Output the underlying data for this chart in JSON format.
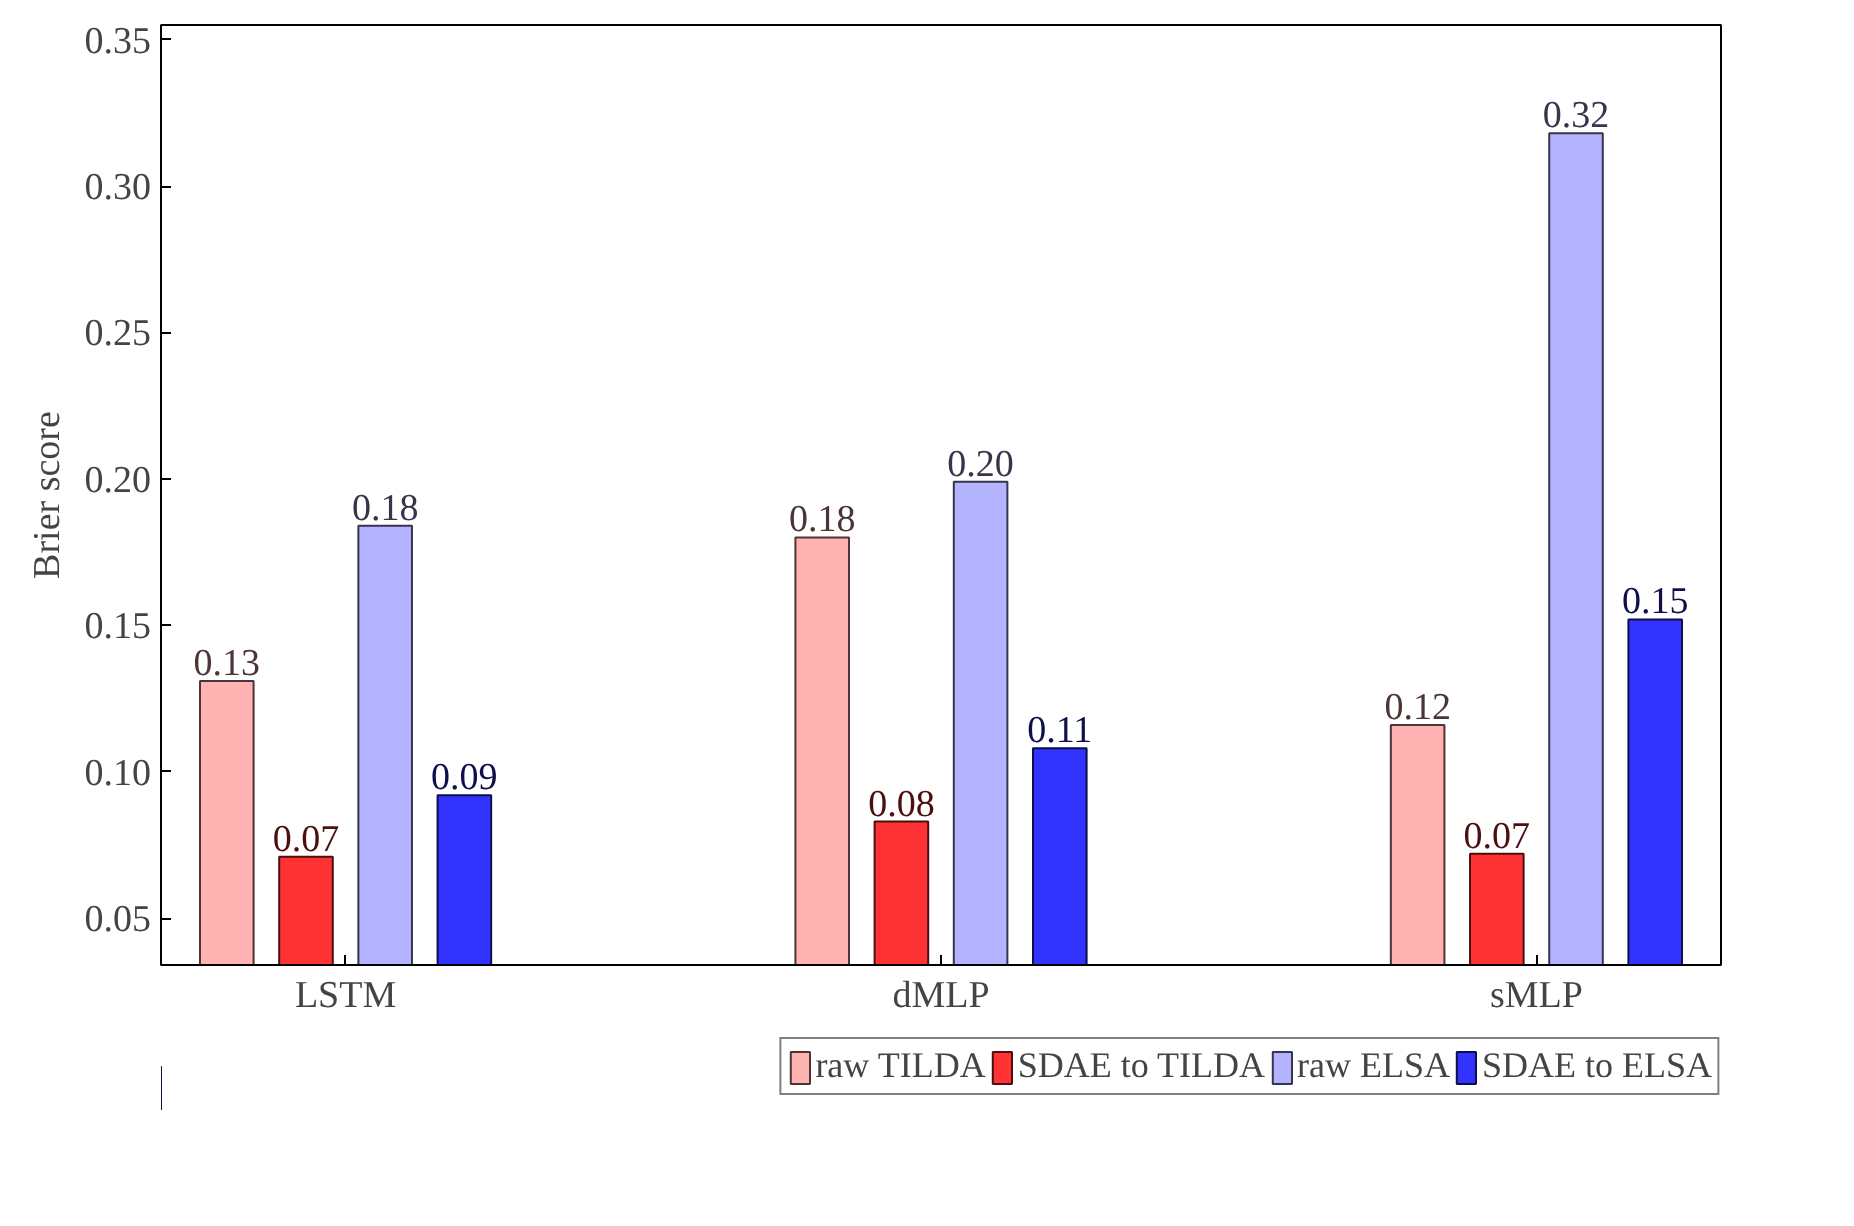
{
  "chart_data": {
    "type": "bar",
    "ylabel": "Brier score",
    "categories": [
      "LSTM",
      "dMLP",
      "sMLP"
    ],
    "series": [
      {
        "name": "raw TILDA",
        "color": "#ffb3b3",
        "values": [
          0.131,
          0.18,
          0.116
        ],
        "value_labels": [
          "0.13",
          "0.18",
          "0.12"
        ]
      },
      {
        "name": "SDAE to TILDA",
        "color": "#ff3333",
        "values": [
          0.071,
          0.083,
          0.072
        ],
        "value_labels": [
          "0.07",
          "0.08",
          "0.07"
        ]
      },
      {
        "name": "raw ELSA",
        "color": "#b3b3ff",
        "values": [
          0.184,
          0.199,
          0.318
        ],
        "value_labels": [
          "0.18",
          "0.20",
          "0.32"
        ]
      },
      {
        "name": "SDAE to ELSA",
        "color": "#3333ff",
        "values": [
          0.092,
          0.108,
          0.152
        ],
        "value_labels": [
          "0.09",
          "0.11",
          "0.15"
        ]
      }
    ],
    "ylim": [
      0.034,
      0.355
    ],
    "yticks": [
      {
        "value": 0.05,
        "label": "0.05"
      },
      {
        "value": 0.1,
        "label": "0.10"
      },
      {
        "value": 0.15,
        "label": "0.15"
      },
      {
        "value": 0.2,
        "label": "0.20"
      },
      {
        "value": 0.25,
        "label": "0.25"
      },
      {
        "value": 0.3,
        "label": "0.30"
      },
      {
        "value": 0.35,
        "label": "0.35"
      }
    ],
    "legend": "bottom",
    "grid": false
  }
}
